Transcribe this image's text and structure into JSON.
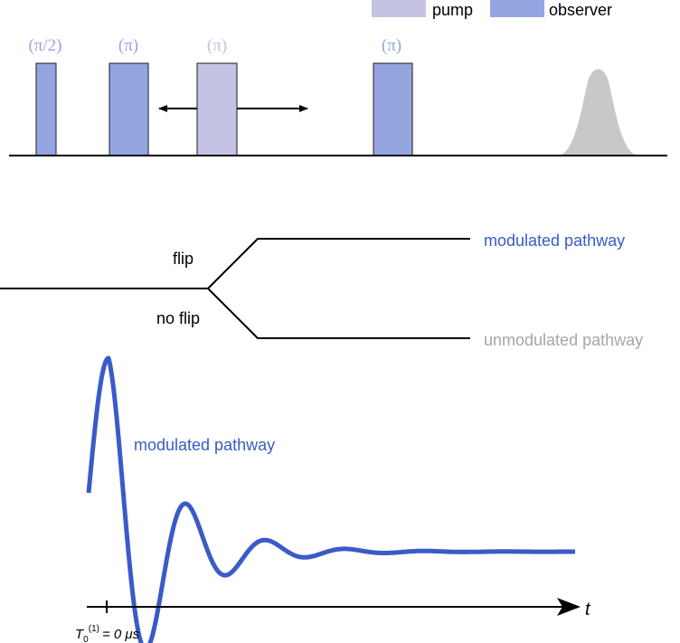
{
  "colors": {
    "observer": "#94a5e0",
    "pump": "#c5c3e3",
    "pulse_stroke": "#1a1a1a",
    "echo": "#c8c8c8",
    "modulated": "#3a5bc7",
    "unmodulated": "#a6a6a6",
    "line": "#000000"
  },
  "legend": {
    "pump_label": "pump",
    "observer_label": "observer"
  },
  "pulses": [
    {
      "id": "pi-half",
      "label": "(π/2)",
      "kind": "observer"
    },
    {
      "id": "pi-1",
      "label": "(π)",
      "kind": "observer"
    },
    {
      "id": "pump-pi",
      "label": "(π)",
      "kind": "pump"
    },
    {
      "id": "pi-2",
      "label": "(π)",
      "kind": "observer"
    }
  ],
  "pathways": {
    "flip_label": "flip",
    "no_flip_label": "no flip",
    "modulated_label": "modulated pathway",
    "unmodulated_label": "unmodulated pathway"
  },
  "signal": {
    "trace_label": "modulated pathway",
    "axis_label": "t",
    "t0_symbol": "T",
    "t0_subscript": "0",
    "t0_superscript": "(1)",
    "t0_value": "= 0 μs"
  }
}
